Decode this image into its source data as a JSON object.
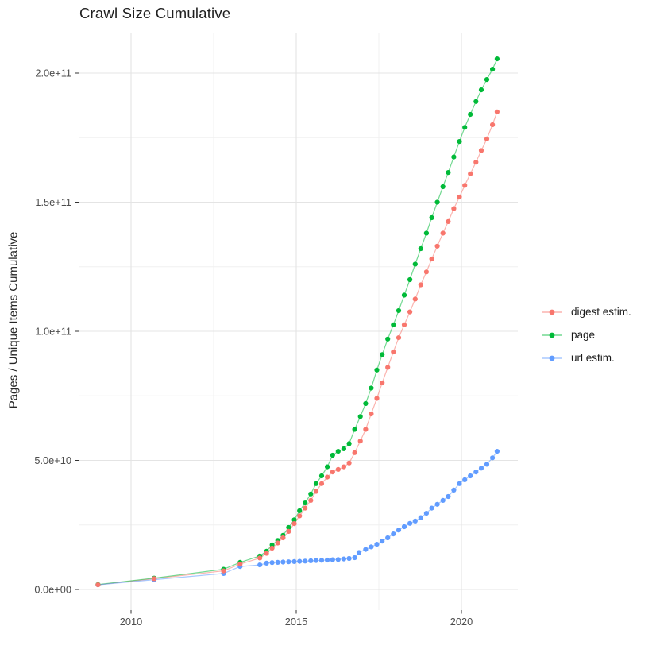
{
  "chart_data": {
    "type": "scatter",
    "title": "Crawl Size Cumulative",
    "xlabel": "",
    "ylabel": "Pages / Unique Items Cumulative",
    "legend_position": "right",
    "grid": true,
    "xlim": [
      2008.4,
      2021.9
    ],
    "ylim_e9": [
      0,
      215
    ],
    "x_ticks": {
      "labels": [
        "2010",
        "2015",
        "2020"
      ],
      "values": [
        2010,
        2015,
        2020
      ]
    },
    "x_minor": [
      2012.5,
      2017.5
    ],
    "y_ticks": {
      "labels": [
        "0.0e+00",
        "5.0e+10",
        "1.0e+11",
        "1.5e+11",
        "2.0e+11"
      ],
      "values_e9": [
        0,
        50,
        100,
        150,
        200
      ]
    },
    "y_minor_e9": [
      25,
      75,
      125,
      175
    ],
    "series": [
      {
        "name": "digest estim.",
        "color": "#F8766D",
        "points_e9": [
          [
            2009.0,
            1.8
          ],
          [
            2010.7,
            4.2
          ],
          [
            2012.8,
            7.2
          ],
          [
            2013.3,
            9.8
          ],
          [
            2013.9,
            12.2
          ],
          [
            2014.1,
            14.0
          ],
          [
            2014.27,
            16.0
          ],
          [
            2014.44,
            18.0
          ],
          [
            2014.6,
            20.0
          ],
          [
            2014.77,
            22.5
          ],
          [
            2014.94,
            25.5
          ],
          [
            2015.1,
            28.5
          ],
          [
            2015.27,
            31.5
          ],
          [
            2015.44,
            34.5
          ],
          [
            2015.6,
            38.0
          ],
          [
            2015.77,
            41.0
          ],
          [
            2015.94,
            43.5
          ],
          [
            2016.1,
            45.5
          ],
          [
            2016.27,
            46.5
          ],
          [
            2016.44,
            47.5
          ],
          [
            2016.6,
            49.0
          ],
          [
            2016.77,
            53.0
          ],
          [
            2016.94,
            57.5
          ],
          [
            2017.1,
            62.0
          ],
          [
            2017.27,
            68.0
          ],
          [
            2017.44,
            74.0
          ],
          [
            2017.6,
            80.0
          ],
          [
            2017.77,
            86.0
          ],
          [
            2017.94,
            92.0
          ],
          [
            2018.1,
            97.5
          ],
          [
            2018.27,
            102.5
          ],
          [
            2018.44,
            107.5
          ],
          [
            2018.6,
            112.5
          ],
          [
            2018.77,
            118.0
          ],
          [
            2018.94,
            123.0
          ],
          [
            2019.1,
            128.0
          ],
          [
            2019.27,
            133.0
          ],
          [
            2019.44,
            138.0
          ],
          [
            2019.6,
            142.5
          ],
          [
            2019.77,
            147.5
          ],
          [
            2019.94,
            152.0
          ],
          [
            2020.1,
            156.5
          ],
          [
            2020.27,
            161.0
          ],
          [
            2020.44,
            165.5
          ],
          [
            2020.6,
            170.0
          ],
          [
            2020.77,
            174.5
          ],
          [
            2020.94,
            180.0
          ],
          [
            2021.08,
            185.0
          ]
        ]
      },
      {
        "name": "page",
        "color": "#00BA38",
        "points_e9": [
          [
            2009.0,
            1.9
          ],
          [
            2010.7,
            4.4
          ],
          [
            2012.8,
            7.8
          ],
          [
            2013.3,
            10.5
          ],
          [
            2013.9,
            13.0
          ],
          [
            2014.1,
            14.8
          ],
          [
            2014.27,
            17.3
          ],
          [
            2014.44,
            19.0
          ],
          [
            2014.6,
            21.0
          ],
          [
            2014.77,
            24.0
          ],
          [
            2014.94,
            27.0
          ],
          [
            2015.1,
            30.5
          ],
          [
            2015.27,
            33.5
          ],
          [
            2015.44,
            37.0
          ],
          [
            2015.6,
            41.0
          ],
          [
            2015.77,
            44.0
          ],
          [
            2015.94,
            47.5
          ],
          [
            2016.1,
            52.0
          ],
          [
            2016.27,
            53.5
          ],
          [
            2016.44,
            54.5
          ],
          [
            2016.6,
            56.5
          ],
          [
            2016.77,
            62.0
          ],
          [
            2016.94,
            67.0
          ],
          [
            2017.1,
            72.0
          ],
          [
            2017.27,
            78.0
          ],
          [
            2017.44,
            85.0
          ],
          [
            2017.6,
            91.0
          ],
          [
            2017.77,
            97.0
          ],
          [
            2017.94,
            102.5
          ],
          [
            2018.1,
            108.0
          ],
          [
            2018.27,
            114.0
          ],
          [
            2018.44,
            120.0
          ],
          [
            2018.6,
            126.0
          ],
          [
            2018.77,
            132.0
          ],
          [
            2018.94,
            138.0
          ],
          [
            2019.1,
            144.0
          ],
          [
            2019.27,
            150.0
          ],
          [
            2019.44,
            156.0
          ],
          [
            2019.6,
            161.5
          ],
          [
            2019.77,
            167.5
          ],
          [
            2019.94,
            173.5
          ],
          [
            2020.1,
            179.0
          ],
          [
            2020.27,
            184.0
          ],
          [
            2020.44,
            189.0
          ],
          [
            2020.6,
            193.5
          ],
          [
            2020.77,
            197.5
          ],
          [
            2020.94,
            201.5
          ],
          [
            2021.08,
            205.5
          ]
        ]
      },
      {
        "name": "url estim.",
        "color": "#619CFF",
        "points_e9": [
          [
            2009.0,
            1.8
          ],
          [
            2010.7,
            3.8
          ],
          [
            2012.8,
            6.2
          ],
          [
            2013.3,
            8.9
          ],
          [
            2013.9,
            9.5
          ],
          [
            2014.1,
            10.2
          ],
          [
            2014.27,
            10.4
          ],
          [
            2014.44,
            10.5
          ],
          [
            2014.6,
            10.6
          ],
          [
            2014.77,
            10.7
          ],
          [
            2014.94,
            10.8
          ],
          [
            2015.1,
            10.9
          ],
          [
            2015.27,
            11.0
          ],
          [
            2015.44,
            11.1
          ],
          [
            2015.6,
            11.2
          ],
          [
            2015.77,
            11.3
          ],
          [
            2015.94,
            11.4
          ],
          [
            2016.1,
            11.5
          ],
          [
            2016.27,
            11.6
          ],
          [
            2016.44,
            11.8
          ],
          [
            2016.6,
            12.0
          ],
          [
            2016.77,
            12.3
          ],
          [
            2016.9,
            14.3
          ],
          [
            2017.1,
            15.5
          ],
          [
            2017.27,
            16.5
          ],
          [
            2017.44,
            17.5
          ],
          [
            2017.6,
            18.7
          ],
          [
            2017.77,
            20.0
          ],
          [
            2017.94,
            21.5
          ],
          [
            2018.1,
            23.0
          ],
          [
            2018.27,
            24.3
          ],
          [
            2018.44,
            25.6
          ],
          [
            2018.6,
            26.5
          ],
          [
            2018.77,
            27.8
          ],
          [
            2018.94,
            29.5
          ],
          [
            2019.1,
            31.5
          ],
          [
            2019.27,
            33.0
          ],
          [
            2019.44,
            34.5
          ],
          [
            2019.6,
            36.0
          ],
          [
            2019.77,
            38.5
          ],
          [
            2019.94,
            41.0
          ],
          [
            2020.1,
            42.5
          ],
          [
            2020.27,
            44.0
          ],
          [
            2020.44,
            45.5
          ],
          [
            2020.6,
            47.0
          ],
          [
            2020.77,
            48.5
          ],
          [
            2020.94,
            51.0
          ],
          [
            2021.08,
            53.5
          ]
        ]
      }
    ],
    "style": {
      "major_grid_color": "#e4e4e4",
      "minor_grid_color": "#f0f0f0",
      "tick_color": "#333333",
      "tick_label_color": "#4d4d4d",
      "point_radius": 3.1,
      "line_opacity": 0.55
    }
  }
}
